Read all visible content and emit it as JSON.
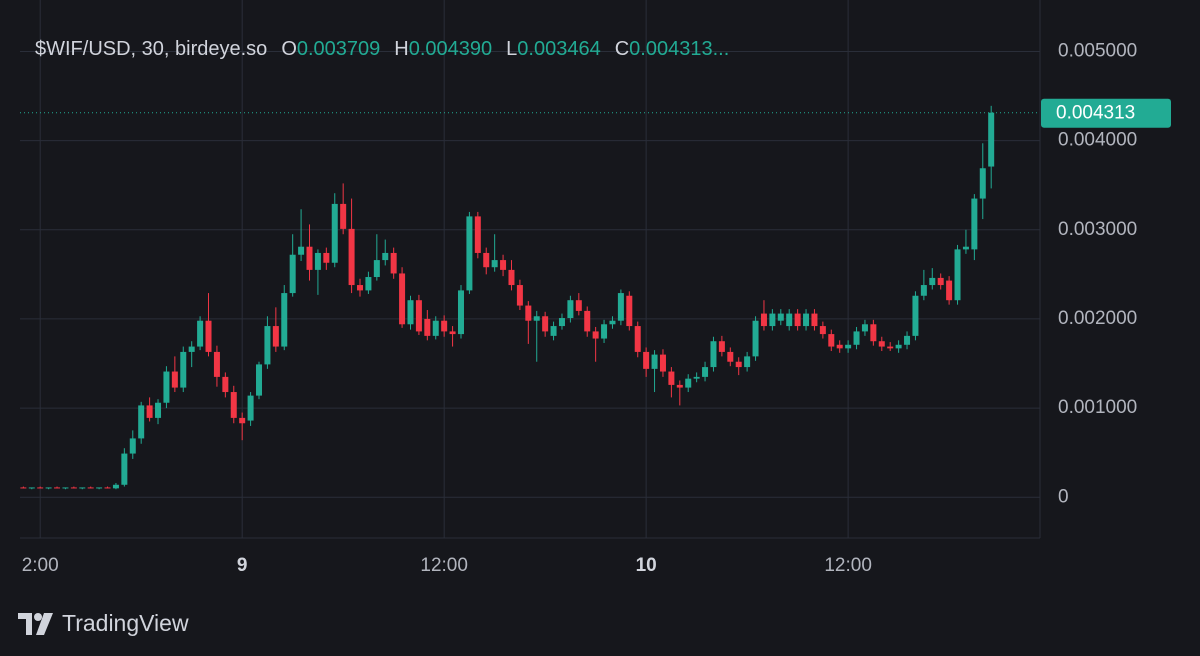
{
  "chart_data": {
    "type": "candlestick",
    "legend": {
      "symbol": "$WIF/USD, 30, birdeye.so",
      "open_label": "O",
      "open": "0.003709",
      "high_label": "H",
      "high": "0.004390",
      "low_label": "L",
      "low": "0.003464",
      "close_label": "C",
      "close": "0.004313..."
    },
    "x": [
      -13,
      -12.5,
      -12,
      -11.5,
      -11,
      -10.5,
      -10,
      -9.5,
      -9,
      -8.5,
      -8,
      -7.5,
      -7,
      -6.5,
      -6,
      -5.5,
      -5,
      -4.5,
      -4,
      -3.5,
      -3,
      -2.5,
      -2,
      -1.5,
      -1,
      -0.5,
      0,
      0.5,
      1,
      1.5,
      2,
      2.5,
      3,
      3.5,
      4,
      4.5,
      5,
      5.5,
      6,
      6.5,
      7,
      7.5,
      8,
      8.5,
      9,
      9.5,
      10,
      10.5,
      11,
      11.5,
      12,
      12.5,
      13,
      13.5,
      14,
      14.5,
      15,
      15.5,
      16,
      16.5,
      17,
      17.5,
      18,
      18.5,
      19,
      19.5,
      20,
      20.5,
      21,
      21.5,
      22,
      22.5,
      23,
      23.5,
      24,
      24.5,
      25,
      25.5,
      26,
      26.5,
      27,
      27.5,
      28,
      28.5,
      29,
      29.5,
      30,
      30.5,
      31,
      31.5,
      32,
      32.5,
      33,
      33.5,
      34,
      34.5,
      35,
      35.5,
      36,
      36.5,
      37,
      37.5,
      38,
      38.5,
      39,
      39.5,
      40,
      40.5,
      41,
      41.5,
      42,
      42.5,
      43,
      43.5,
      44,
      44.5
    ],
    "open": [
      0.00011,
      0.0001,
      0.00011,
      0.0001,
      0.00011,
      0.0001,
      0.00011,
      0.0001,
      0.00011,
      0.0001,
      0.00011,
      0.0001,
      0.00014,
      0.00049,
      0.00066,
      0.00103,
      0.00089,
      0.00106,
      0.00141,
      0.00123,
      0.00163,
      0.00169,
      0.00198,
      0.00163,
      0.00135,
      0.00118,
      0.00089,
      0.00086,
      0.00114,
      0.00149,
      0.00192,
      0.00169,
      0.00229,
      0.00272,
      0.00281,
      0.00255,
      0.00274,
      0.00263,
      0.00329,
      0.00301,
      0.00238,
      0.00232,
      0.00247,
      0.00266,
      0.00274,
      0.00251,
      0.00194,
      0.00221,
      0.002,
      0.00181,
      0.00198,
      0.00186,
      0.00183,
      0.00232,
      0.00315,
      0.00274,
      0.00258,
      0.00266,
      0.00255,
      0.00238,
      0.00215,
      0.00198,
      0.00203,
      0.00181,
      0.00192,
      0.00201,
      0.00221,
      0.00209,
      0.00186,
      0.00178,
      0.00194,
      0.00198,
      0.00226,
      0.00192,
      0.00163,
      0.00144,
      0.0016,
      0.00141,
      0.00126,
      0.00123,
      0.00133,
      0.00135,
      0.00146,
      0.00175,
      0.00163,
      0.00152,
      0.00146,
      0.00158,
      0.00206,
      0.00192,
      0.00198,
      0.00192,
      0.00206,
      0.00192,
      0.00206,
      0.00192,
      0.00183,
      0.00171,
      0.00167,
      0.00171,
      0.00186,
      0.00194,
      0.00175,
      0.00169,
      0.00167,
      0.00171,
      0.00181,
      0.00226,
      0.00238,
      0.00246,
      0.00243,
      0.00221,
      0.00278,
      0.00278,
      0.00335,
      0.003709
    ],
    "high": [
      0.00012,
      0.00011,
      0.00012,
      0.00011,
      0.00012,
      0.00011,
      0.00012,
      0.00011,
      0.00012,
      0.00011,
      0.00012,
      0.00016,
      0.00055,
      0.00075,
      0.00107,
      0.00112,
      0.0011,
      0.00147,
      0.00158,
      0.00169,
      0.00175,
      0.00203,
      0.00229,
      0.0017,
      0.0014,
      0.00125,
      0.00095,
      0.00118,
      0.00152,
      0.00203,
      0.00213,
      0.00238,
      0.00295,
      0.00323,
      0.00306,
      0.00278,
      0.0028,
      0.00341,
      0.00352,
      0.00335,
      0.00245,
      0.00253,
      0.00295,
      0.00289,
      0.0028,
      0.00258,
      0.00226,
      0.00227,
      0.0021,
      0.00203,
      0.00204,
      0.00192,
      0.00238,
      0.0032,
      0.0032,
      0.0028,
      0.00295,
      0.00272,
      0.00266,
      0.00244,
      0.0022,
      0.00209,
      0.00208,
      0.00197,
      0.00206,
      0.00226,
      0.00229,
      0.00214,
      0.00191,
      0.00199,
      0.00203,
      0.00233,
      0.00231,
      0.00197,
      0.00168,
      0.00165,
      0.00166,
      0.00146,
      0.00131,
      0.00138,
      0.0014,
      0.00152,
      0.0018,
      0.00181,
      0.00168,
      0.00157,
      0.00163,
      0.00203,
      0.00221,
      0.00211,
      0.00211,
      0.00211,
      0.00211,
      0.00211,
      0.00211,
      0.00197,
      0.00188,
      0.00176,
      0.00176,
      0.00191,
      0.00199,
      0.00199,
      0.0018,
      0.00174,
      0.00176,
      0.00186,
      0.00231,
      0.00255,
      0.00257,
      0.00251,
      0.00248,
      0.00283,
      0.003,
      0.0034,
      0.00397,
      0.00439
    ],
    "low": [
      0.0001,
      9e-05,
      0.0001,
      9e-05,
      0.0001,
      9e-05,
      0.0001,
      9e-05,
      0.0001,
      9e-05,
      0.0001,
      9e-05,
      0.00012,
      0.00043,
      0.0006,
      0.00085,
      0.00082,
      0.001,
      0.00118,
      0.00118,
      0.00146,
      0.00165,
      0.00158,
      0.00124,
      0.00112,
      0.00083,
      0.00064,
      0.0008,
      0.0011,
      0.00144,
      0.00163,
      0.00165,
      0.00225,
      0.00265,
      0.00243,
      0.00227,
      0.00255,
      0.00258,
      0.00295,
      0.00229,
      0.00225,
      0.00228,
      0.00243,
      0.0026,
      0.00245,
      0.0019,
      0.00188,
      0.00182,
      0.00176,
      0.00177,
      0.0018,
      0.00169,
      0.00178,
      0.00228,
      0.00268,
      0.0025,
      0.00253,
      0.00248,
      0.00232,
      0.0021,
      0.00172,
      0.00152,
      0.0018,
      0.00176,
      0.00188,
      0.00196,
      0.00204,
      0.0018,
      0.00152,
      0.00173,
      0.00189,
      0.00193,
      0.00187,
      0.00157,
      0.00135,
      0.00118,
      0.00135,
      0.00112,
      0.00103,
      0.00118,
      0.00129,
      0.0013,
      0.00141,
      0.00158,
      0.00147,
      0.00137,
      0.00141,
      0.00153,
      0.00187,
      0.00187,
      0.00193,
      0.00187,
      0.00187,
      0.00187,
      0.00187,
      0.00178,
      0.00164,
      0.00162,
      0.00162,
      0.00166,
      0.00181,
      0.0017,
      0.00164,
      0.00164,
      0.00162,
      0.00166,
      0.00176,
      0.00221,
      0.00233,
      0.00233,
      0.00216,
      0.00216,
      0.00273,
      0.00266,
      0.00312,
      0.003464
    ],
    "close": [
      0.0001,
      0.00011,
      0.0001,
      0.00011,
      0.0001,
      0.00011,
      0.0001,
      0.00011,
      0.0001,
      0.00011,
      0.0001,
      0.00014,
      0.00049,
      0.00066,
      0.00103,
      0.00089,
      0.00106,
      0.00141,
      0.00123,
      0.00163,
      0.00169,
      0.00198,
      0.00163,
      0.00135,
      0.00118,
      0.00089,
      0.00083,
      0.00114,
      0.00149,
      0.00192,
      0.00169,
      0.00229,
      0.00272,
      0.00281,
      0.00255,
      0.00274,
      0.00263,
      0.00329,
      0.00301,
      0.00238,
      0.00232,
      0.00247,
      0.00266,
      0.00274,
      0.00251,
      0.00194,
      0.00221,
      0.00186,
      0.00181,
      0.00198,
      0.00186,
      0.00183,
      0.00232,
      0.00315,
      0.00274,
      0.00258,
      0.00266,
      0.00255,
      0.00238,
      0.00215,
      0.00198,
      0.00203,
      0.00186,
      0.00192,
      0.00201,
      0.00221,
      0.00209,
      0.00186,
      0.00178,
      0.00194,
      0.00198,
      0.00229,
      0.00192,
      0.00163,
      0.00144,
      0.0016,
      0.00141,
      0.00126,
      0.00123,
      0.00133,
      0.00135,
      0.00146,
      0.00175,
      0.00163,
      0.00152,
      0.00146,
      0.00158,
      0.00198,
      0.00192,
      0.00206,
      0.00206,
      0.00206,
      0.00192,
      0.00206,
      0.00192,
      0.00183,
      0.00169,
      0.00167,
      0.00171,
      0.00186,
      0.00194,
      0.00175,
      0.00169,
      0.00167,
      0.00171,
      0.00181,
      0.00226,
      0.00238,
      0.00246,
      0.00238,
      0.00221,
      0.00278,
      0.00281,
      0.00335,
      0.00369,
      0.004313
    ],
    "up_color": "#22ab94",
    "down_color": "#f23645",
    "xlim": [
      -13.2,
      47.4
    ],
    "ylim": [
      -0.000457,
      0.005577
    ],
    "xticks": [
      {
        "value": -12,
        "label": "2:00"
      },
      {
        "value": 0,
        "label": "9"
      },
      {
        "value": 12,
        "label": "12:00"
      },
      {
        "value": 24,
        "label": "10"
      },
      {
        "value": 36,
        "label": "12:00"
      }
    ],
    "yticks": [
      0,
      {
        "value": 0.001,
        "label": "0.001000"
      },
      {
        "value": 0.002,
        "label": "0.002000"
      },
      {
        "value": 0.003,
        "label": "0.003000"
      },
      {
        "value": 0.004,
        "label": "0.004000"
      },
      {
        "value": 0.005,
        "label": "0.005000"
      }
    ],
    "grid": true,
    "last_price": 0.004313,
    "last_price_color": "#22ab94"
  },
  "branding": "TradingView"
}
